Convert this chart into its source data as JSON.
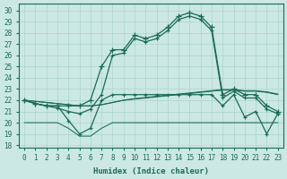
{
  "xlabel": "Humidex (Indice chaleur)",
  "bg_color": "#cce8e2",
  "line_color": "#1a6b58",
  "grid_color": "#aad4cc",
  "xlim": [
    -0.5,
    23.5
  ],
  "ylim": [
    17.8,
    30.6
  ],
  "x_ticks": [
    0,
    1,
    2,
    3,
    4,
    5,
    6,
    7,
    8,
    9,
    10,
    11,
    12,
    13,
    14,
    15,
    16,
    17,
    18,
    19,
    20,
    21,
    22,
    23
  ],
  "yticks": [
    18,
    19,
    20,
    21,
    22,
    23,
    24,
    25,
    26,
    27,
    28,
    29,
    30
  ],
  "main_y": [
    22.0,
    21.7,
    21.5,
    21.5,
    21.5,
    21.5,
    22.0,
    25.0,
    26.5,
    26.5,
    27.8,
    27.5,
    27.8,
    28.5,
    29.5,
    29.8,
    29.5,
    28.5,
    22.5,
    23.0,
    22.5,
    22.5,
    21.5,
    21.0
  ],
  "main2_y": [
    22.0,
    21.7,
    21.5,
    21.3,
    21.0,
    20.8,
    21.2,
    22.5,
    26.0,
    26.2,
    27.5,
    27.2,
    27.5,
    28.2,
    29.2,
    29.5,
    29.2,
    28.2,
    22.2,
    22.8,
    22.2,
    22.2,
    21.2,
    20.8
  ],
  "flat1_y": [
    22.0,
    21.9,
    21.8,
    21.7,
    21.6,
    21.5,
    21.5,
    21.6,
    21.8,
    22.0,
    22.1,
    22.2,
    22.3,
    22.4,
    22.5,
    22.6,
    22.7,
    22.8,
    22.9,
    22.9,
    22.8,
    22.8,
    22.7,
    22.5
  ],
  "flat2_y": [
    22.0,
    21.9,
    21.8,
    21.7,
    21.6,
    21.5,
    21.5,
    21.6,
    21.8,
    22.0,
    22.15,
    22.25,
    22.35,
    22.45,
    22.55,
    22.65,
    22.75,
    22.85,
    22.95,
    22.95,
    22.85,
    22.85,
    22.75,
    22.55
  ],
  "bottom_y": [
    20.0,
    20.0,
    20.0,
    20.0,
    19.5,
    18.8,
    18.8,
    19.5,
    20.0,
    20.0,
    20.0,
    20.0,
    20.0,
    20.0,
    20.0,
    20.0,
    20.0,
    20.0,
    20.0,
    20.0,
    20.0,
    20.0,
    20.0,
    20.0
  ],
  "low_y": [
    22.0,
    21.7,
    21.5,
    21.5,
    20.2,
    19.0,
    19.5,
    22.0,
    22.5,
    22.5,
    22.5,
    22.5,
    22.5,
    22.5,
    22.5,
    22.5,
    22.5,
    22.5,
    21.5,
    22.5,
    20.5,
    21.0,
    19.0,
    20.8
  ]
}
